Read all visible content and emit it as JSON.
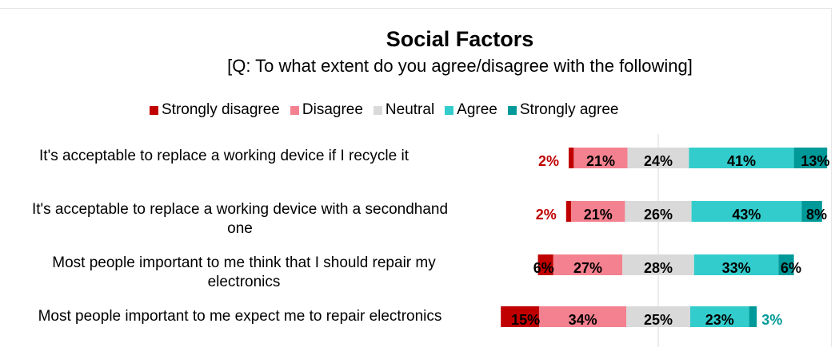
{
  "chart_data": {
    "type": "bar",
    "orientation": "horizontal",
    "stacked": "diverging",
    "title": "Social Factors",
    "subtitle": "[Q: To what extent do you agree/disagree with the following]",
    "categories": [
      "It's acceptable to replace a working device if I recycle it",
      "It's acceptable to replace a working device with a secondhand one",
      "Most people important to me think that I should repair my electronics",
      "Most people important to me expect me to repair electronics"
    ],
    "series": [
      {
        "name": "Strongly disagree",
        "color": "#c00000",
        "values": [
          2,
          2,
          6,
          15
        ],
        "labels": [
          "2%",
          "2%",
          "6%",
          "15%"
        ]
      },
      {
        "name": "Disagree",
        "color": "#f4818f",
        "values": [
          21,
          21,
          27,
          34
        ],
        "labels": [
          "21%",
          "21%",
          "27%",
          "34%"
        ]
      },
      {
        "name": "Neutral",
        "color": "#d9d9d9",
        "values": [
          24,
          26,
          28,
          25
        ],
        "labels": [
          "24%",
          "26%",
          "28%",
          "25%"
        ]
      },
      {
        "name": "Agree",
        "color": "#33cccc",
        "values": [
          41,
          43,
          33,
          23
        ],
        "labels": [
          "41%",
          "43%",
          "33%",
          "23%"
        ]
      },
      {
        "name": "Strongly agree",
        "color": "#009999",
        "values": [
          13,
          8,
          6,
          3
        ],
        "labels": [
          "13%",
          "8%",
          "6%",
          "3%"
        ]
      }
    ],
    "legend_position": "top",
    "grid": false
  }
}
